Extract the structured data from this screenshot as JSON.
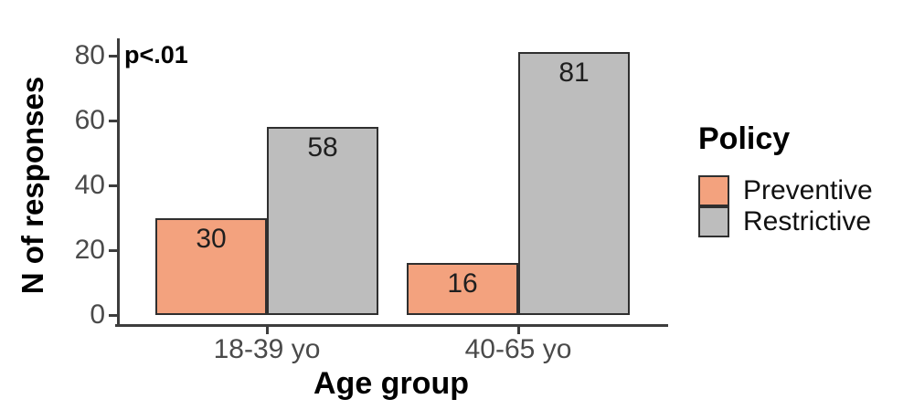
{
  "chart_data": {
    "type": "bar",
    "title": "",
    "xlabel": "Age group",
    "ylabel": "N of responses",
    "annotation": "p<.01",
    "categories": [
      "18-39 yo",
      "40-65 yo"
    ],
    "series": [
      {
        "name": "Preventive",
        "values": [
          30,
          16
        ],
        "color": "#F3A27E",
        "border": "#2F2F2F"
      },
      {
        "name": "Restrictive",
        "values": [
          58,
          81
        ],
        "color": "#BDBDBD",
        "border": "#2F2F2F"
      }
    ],
    "yticks": [
      0,
      20,
      40,
      60,
      80
    ],
    "ylim": [
      0,
      85
    ],
    "grid": false,
    "bar_labels": true,
    "legend_title": "Policy",
    "legend_position": "right"
  },
  "legend": {
    "title": "Policy",
    "items": [
      {
        "label": "Preventive",
        "color": "#F3A27E"
      },
      {
        "label": "Restrictive",
        "color": "#BDBDBD"
      }
    ]
  },
  "colors": {
    "background": "#FFFFFF",
    "axis": "#3D3D3D",
    "tick_label": "#4A4A4A",
    "bar_border": "#2F2F2F",
    "text": "#000000",
    "preventive": "#F3A27E",
    "restrictive": "#BDBDBD"
  }
}
